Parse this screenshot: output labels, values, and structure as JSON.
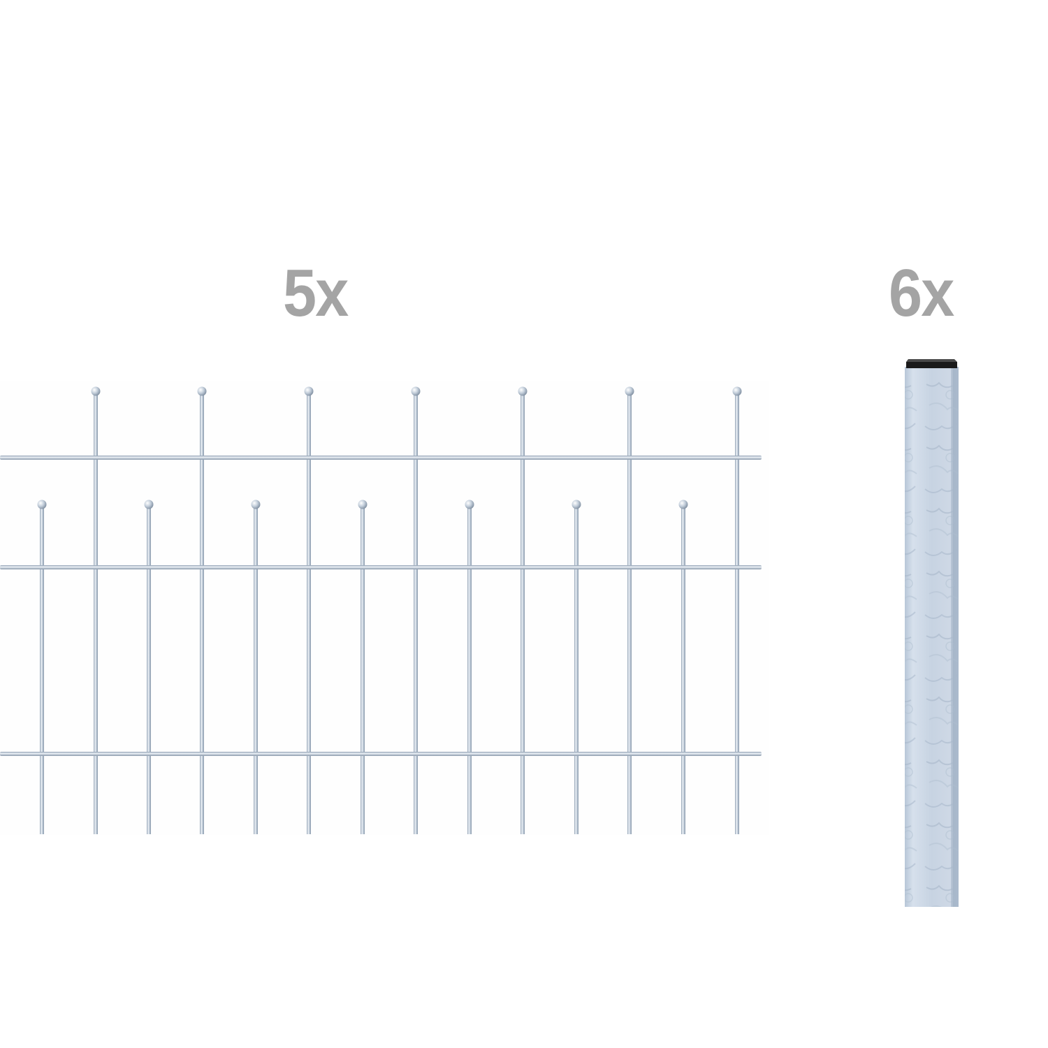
{
  "product": {
    "panels": {
      "quantity_label": "5x",
      "icon": "fence-panel-icon"
    },
    "posts": {
      "quantity_label": "6x",
      "icon": "fence-post-icon"
    }
  },
  "colors": {
    "background": "#ffffff",
    "quantity_text": "#a4a4a4",
    "galvanized_steel": "#c9d5e3",
    "post_cap": "#1a1a1a"
  }
}
